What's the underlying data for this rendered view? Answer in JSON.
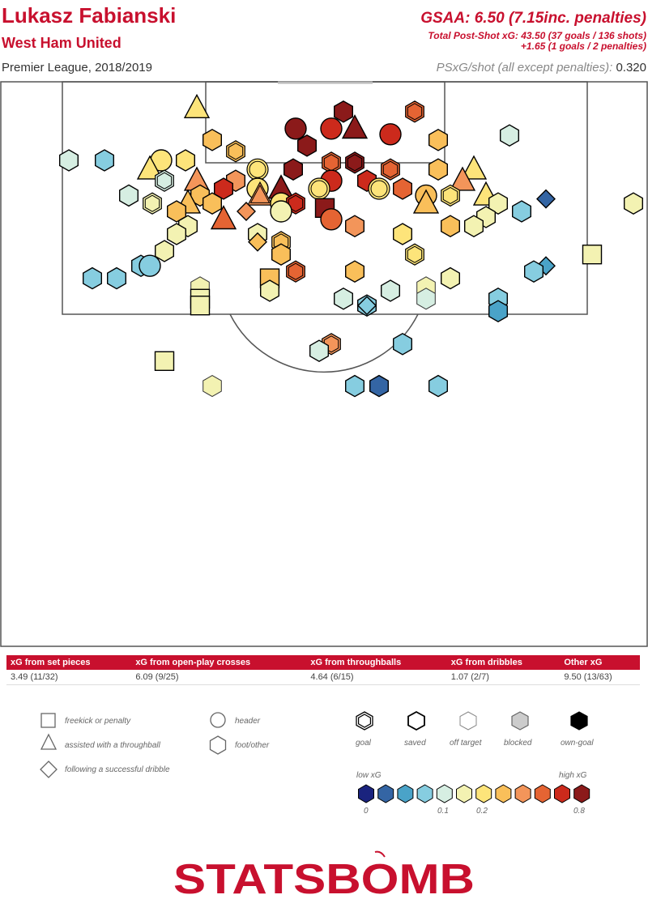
{
  "header": {
    "player": "Lukasz Fabianski",
    "team": "West Ham United",
    "league_season": "Premier League, 2018/2019",
    "gsaa": "GSAA: 6.50 (7.15inc. penalties)",
    "psxg_total": "Total Post-Shot xG: 43.50 (37 goals / 136 shots)",
    "psxg_pens": "+1.65 (1 goals / 2 penalties)",
    "psxg_shot_label": "PSxG/shot (all except penalties):",
    "psxg_shot_value": "0.320"
  },
  "table": {
    "headers": [
      "xG from set pieces",
      "xG from open-play crosses",
      "xG from throughballs",
      "xG from dribbles",
      "Other xG"
    ],
    "values": [
      "3.49 (11/32)",
      "6.09 (9/25)",
      "4.64 (6/15)",
      "1.07 (2/7)",
      "9.50 (13/63)"
    ]
  },
  "legend": {
    "shapes": [
      "freekick or penalty",
      "assisted with a throughball",
      "following a successful dribble",
      "header",
      "foot/other"
    ],
    "outcomes": [
      "goal",
      "saved",
      "off target",
      "blocked",
      "own-goal"
    ],
    "scale_low": "low xG",
    "scale_high": "high xG",
    "scale_ticks": [
      "0",
      "0.1",
      "0.2",
      "0.8"
    ],
    "scale_colors": [
      "#1a237e",
      "#3465a4",
      "#4aa3c8",
      "#86cde0",
      "#d6eee2",
      "#f3f2b2",
      "#fde47a",
      "#f9bf5a",
      "#f3955a",
      "#e56433",
      "#cc2a1c",
      "#8b1a1a"
    ]
  },
  "brand": "STATSBOMB",
  "chart_data": {
    "type": "scatter",
    "title": "Lukasz Fabianski",
    "xlabel": "",
    "ylabel": "",
    "xlim": [
      0,
      80
    ],
    "ylim": [
      70,
      120
    ],
    "color_scale": "xG",
    "points": [
      {
        "x": 24.3,
        "y": 117.6,
        "shape": "triangle",
        "color": "#fde47a",
        "outcome": "saved",
        "xg": 0.25
      },
      {
        "x": 42.4,
        "y": 117.3,
        "shape": "hexagon",
        "color": "#8b1a1a",
        "outcome": "saved",
        "xg": 0.9
      },
      {
        "x": 51.2,
        "y": 117.3,
        "shape": "hexagon",
        "color": "#e56433",
        "outcome": "goal",
        "xg": 0.55
      },
      {
        "x": 36.5,
        "y": 115.8,
        "shape": "circle",
        "color": "#8b1a1a",
        "outcome": "saved",
        "xg": 0.85
      },
      {
        "x": 40.9,
        "y": 115.8,
        "shape": "circle",
        "color": "#cc2a1c",
        "outcome": "saved",
        "xg": 0.7
      },
      {
        "x": 43.8,
        "y": 115.8,
        "shape": "triangle",
        "color": "#8b1a1a",
        "outcome": "saved",
        "xg": 0.85
      },
      {
        "x": 48.2,
        "y": 115.3,
        "shape": "circle",
        "color": "#cc2a1c",
        "outcome": "saved",
        "xg": 0.7
      },
      {
        "x": 62.9,
        "y": 115.2,
        "shape": "hexagon",
        "color": "#d6eee2",
        "outcome": "saved",
        "xg": 0.09
      },
      {
        "x": 26.2,
        "y": 114.8,
        "shape": "hexagon",
        "color": "#f9bf5a",
        "outcome": "saved",
        "xg": 0.3
      },
      {
        "x": 54.1,
        "y": 114.8,
        "shape": "hexagon",
        "color": "#f9bf5a",
        "outcome": "saved",
        "xg": 0.3
      },
      {
        "x": 37.9,
        "y": 114.3,
        "shape": "hexagon",
        "color": "#8b1a1a",
        "outcome": "saved",
        "xg": 0.85
      },
      {
        "x": 29.1,
        "y": 113.8,
        "shape": "hexagon",
        "color": "#f9bf5a",
        "outcome": "goal",
        "xg": 0.3
      },
      {
        "x": 8.5,
        "y": 113.0,
        "shape": "hexagon",
        "color": "#d6eee2",
        "outcome": "saved",
        "xg": 0.09
      },
      {
        "x": 12.9,
        "y": 113.0,
        "shape": "hexagon",
        "color": "#86cde0",
        "outcome": "saved",
        "xg": 0.06
      },
      {
        "x": 19.9,
        "y": 113.0,
        "shape": "circle",
        "color": "#fde47a",
        "outcome": "saved",
        "xg": 0.22
      },
      {
        "x": 22.9,
        "y": 113.0,
        "shape": "hexagon",
        "color": "#fde47a",
        "outcome": "saved",
        "xg": 0.22
      },
      {
        "x": 18.5,
        "y": 112.2,
        "shape": "triangle",
        "color": "#fde47a",
        "outcome": "saved",
        "xg": 0.25
      },
      {
        "x": 31.8,
        "y": 112.2,
        "shape": "circle",
        "color": "#fde47a",
        "outcome": "goal",
        "xg": 0.22
      },
      {
        "x": 36.2,
        "y": 112.2,
        "shape": "hexagon",
        "color": "#8b1a1a",
        "outcome": "saved",
        "xg": 0.85
      },
      {
        "x": 40.9,
        "y": 112.8,
        "shape": "hexagon",
        "color": "#e56433",
        "outcome": "goal",
        "xg": 0.55
      },
      {
        "x": 43.8,
        "y": 112.8,
        "shape": "hexagon",
        "color": "#8b1a1a",
        "outcome": "goal",
        "xg": 0.9
      },
      {
        "x": 48.2,
        "y": 112.2,
        "shape": "hexagon",
        "color": "#e56433",
        "outcome": "goal",
        "xg": 0.55
      },
      {
        "x": 54.1,
        "y": 112.2,
        "shape": "hexagon",
        "color": "#f9bf5a",
        "outcome": "saved",
        "xg": 0.3
      },
      {
        "x": 58.5,
        "y": 112.2,
        "shape": "triangle",
        "color": "#fde47a",
        "outcome": "saved",
        "xg": 0.25
      },
      {
        "x": 20.3,
        "y": 111.2,
        "shape": "hexagon",
        "color": "#d6eee2",
        "outcome": "goal",
        "xg": 0.09
      },
      {
        "x": 24.3,
        "y": 111.2,
        "shape": "triangle",
        "color": "#f3955a",
        "outcome": "saved",
        "xg": 0.4
      },
      {
        "x": 29.1,
        "y": 111.2,
        "shape": "hexagon",
        "color": "#f3955a",
        "outcome": "saved",
        "xg": 0.4
      },
      {
        "x": 40.9,
        "y": 111.2,
        "shape": "circle",
        "color": "#cc2a1c",
        "outcome": "saved",
        "xg": 0.7
      },
      {
        "x": 45.3,
        "y": 111.2,
        "shape": "hexagon",
        "color": "#cc2a1c",
        "outcome": "saved",
        "xg": 0.7
      },
      {
        "x": 57.1,
        "y": 111.2,
        "shape": "triangle",
        "color": "#f3955a",
        "outcome": "saved",
        "xg": 0.4
      },
      {
        "x": 27.6,
        "y": 110.5,
        "shape": "hexagon",
        "color": "#cc2a1c",
        "outcome": "saved",
        "xg": 0.7
      },
      {
        "x": 31.8,
        "y": 110.5,
        "shape": "circle",
        "color": "#fde47a",
        "outcome": "saved",
        "xg": 0.22
      },
      {
        "x": 34.7,
        "y": 110.5,
        "shape": "triangle",
        "color": "#8b1a1a",
        "outcome": "saved",
        "xg": 0.85
      },
      {
        "x": 39.4,
        "y": 110.5,
        "shape": "circle",
        "color": "#fde47a",
        "outcome": "goal",
        "xg": 0.22
      },
      {
        "x": 46.8,
        "y": 110.5,
        "shape": "circle",
        "color": "#fde47a",
        "outcome": "goal",
        "xg": 0.22
      },
      {
        "x": 49.7,
        "y": 110.5,
        "shape": "hexagon",
        "color": "#e56433",
        "outcome": "saved",
        "xg": 0.55
      },
      {
        "x": 15.9,
        "y": 109.9,
        "shape": "hexagon",
        "color": "#d6eee2",
        "outcome": "saved",
        "xg": 0.09
      },
      {
        "x": 24.7,
        "y": 109.9,
        "shape": "hexagon",
        "color": "#f9bf5a",
        "outcome": "saved",
        "xg": 0.3
      },
      {
        "x": 32.1,
        "y": 109.9,
        "shape": "triangle",
        "color": "#f3955a",
        "outcome": "goal",
        "xg": 0.4
      },
      {
        "x": 52.6,
        "y": 109.9,
        "shape": "circle",
        "color": "#f9bf5a",
        "outcome": "saved",
        "xg": 0.3
      },
      {
        "x": 55.6,
        "y": 109.9,
        "shape": "hexagon",
        "color": "#fde47a",
        "outcome": "goal",
        "xg": 0.22
      },
      {
        "x": 60.0,
        "y": 109.9,
        "shape": "triangle",
        "color": "#fde47a",
        "outcome": "saved",
        "xg": 0.25
      },
      {
        "x": 67.4,
        "y": 109.6,
        "shape": "diamond",
        "color": "#3465a4",
        "outcome": "saved",
        "xg": 0.03
      },
      {
        "x": 18.8,
        "y": 109.2,
        "shape": "hexagon",
        "color": "#f3f2b2",
        "outcome": "goal",
        "xg": 0.12
      },
      {
        "x": 23.2,
        "y": 109.2,
        "shape": "triangle",
        "color": "#f9bf5a",
        "outcome": "saved",
        "xg": 0.3
      },
      {
        "x": 26.2,
        "y": 109.2,
        "shape": "hexagon",
        "color": "#f9bf5a",
        "outcome": "saved",
        "xg": 0.3
      },
      {
        "x": 34.7,
        "y": 109.2,
        "shape": "circle",
        "color": "#fde47a",
        "outcome": "saved",
        "xg": 0.22
      },
      {
        "x": 36.5,
        "y": 109.2,
        "shape": "hexagon",
        "color": "#cc2a1c",
        "outcome": "goal",
        "xg": 0.7
      },
      {
        "x": 40.1,
        "y": 108.8,
        "shape": "square",
        "color": "#8b1a1a",
        "outcome": "saved",
        "xg": 0.77
      },
      {
        "x": 52.6,
        "y": 109.2,
        "shape": "triangle",
        "color": "#f9bf5a",
        "outcome": "saved",
        "xg": 0.3
      },
      {
        "x": 61.5,
        "y": 109.2,
        "shape": "hexagon",
        "color": "#f3f2b2",
        "outcome": "saved",
        "xg": 0.12
      },
      {
        "x": 78.2,
        "y": 109.2,
        "shape": "hexagon",
        "color": "#f3f2b2",
        "outcome": "saved",
        "xg": 0.12
      },
      {
        "x": 21.8,
        "y": 108.5,
        "shape": "hexagon",
        "color": "#f9bf5a",
        "outcome": "saved",
        "xg": 0.3
      },
      {
        "x": 30.4,
        "y": 108.5,
        "shape": "diamond",
        "color": "#f3955a",
        "outcome": "saved",
        "xg": 0.4
      },
      {
        "x": 34.7,
        "y": 108.5,
        "shape": "circle",
        "color": "#f3f2b2",
        "outcome": "saved",
        "xg": 0.12
      },
      {
        "x": 64.4,
        "y": 108.5,
        "shape": "hexagon",
        "color": "#86cde0",
        "outcome": "saved",
        "xg": 0.06
      },
      {
        "x": 27.6,
        "y": 107.8,
        "shape": "triangle",
        "color": "#e56433",
        "outcome": "saved",
        "xg": 0.55
      },
      {
        "x": 40.9,
        "y": 107.8,
        "shape": "circle",
        "color": "#e56433",
        "outcome": "saved",
        "xg": 0.55
      },
      {
        "x": 60.0,
        "y": 108.0,
        "shape": "hexagon",
        "color": "#f3f2b2",
        "outcome": "saved",
        "xg": 0.12
      },
      {
        "x": 23.2,
        "y": 107.2,
        "shape": "hexagon",
        "color": "#f3f2b2",
        "outcome": "saved",
        "xg": 0.12
      },
      {
        "x": 43.8,
        "y": 107.2,
        "shape": "hexagon",
        "color": "#f3955a",
        "outcome": "saved",
        "xg": 0.4
      },
      {
        "x": 55.6,
        "y": 107.2,
        "shape": "hexagon",
        "color": "#f9bf5a",
        "outcome": "saved",
        "xg": 0.3
      },
      {
        "x": 58.5,
        "y": 107.2,
        "shape": "hexagon",
        "color": "#f3f2b2",
        "outcome": "saved",
        "xg": 0.12
      },
      {
        "x": 21.8,
        "y": 106.5,
        "shape": "hexagon",
        "color": "#f3f2b2",
        "outcome": "saved",
        "xg": 0.12
      },
      {
        "x": 31.8,
        "y": 106.5,
        "shape": "hexagon",
        "color": "#f3f2b2",
        "outcome": "saved",
        "xg": 0.12
      },
      {
        "x": 49.7,
        "y": 106.5,
        "shape": "hexagon",
        "color": "#fde47a",
        "outcome": "saved",
        "xg": 0.22
      },
      {
        "x": 31.8,
        "y": 105.8,
        "shape": "diamond",
        "color": "#f9bf5a",
        "outcome": "saved",
        "xg": 0.3
      },
      {
        "x": 34.7,
        "y": 105.8,
        "shape": "hexagon",
        "color": "#f9bf5a",
        "outcome": "goal",
        "xg": 0.3
      },
      {
        "x": 20.3,
        "y": 105.0,
        "shape": "hexagon",
        "color": "#f3f2b2",
        "outcome": "saved",
        "xg": 0.12
      },
      {
        "x": 34.7,
        "y": 104.7,
        "shape": "hexagon",
        "color": "#f9bf5a",
        "outcome": "saved",
        "xg": 0.3
      },
      {
        "x": 51.2,
        "y": 104.7,
        "shape": "hexagon",
        "color": "#fde47a",
        "outcome": "goal",
        "xg": 0.22
      },
      {
        "x": 73.1,
        "y": 104.7,
        "shape": "square",
        "color": "#f3f2b2",
        "outcome": "saved",
        "xg": 0.12
      },
      {
        "x": 17.4,
        "y": 103.7,
        "shape": "hexagon",
        "color": "#86cde0",
        "outcome": "saved",
        "xg": 0.06
      },
      {
        "x": 18.5,
        "y": 103.7,
        "shape": "circle",
        "color": "#86cde0",
        "outcome": "saved",
        "xg": 0.06
      },
      {
        "x": 67.4,
        "y": 103.7,
        "shape": "diamond",
        "color": "#4aa3c8",
        "outcome": "saved",
        "xg": 0.05
      },
      {
        "x": 36.5,
        "y": 103.2,
        "shape": "hexagon",
        "color": "#e56433",
        "outcome": "goal",
        "xg": 0.55
      },
      {
        "x": 43.8,
        "y": 103.2,
        "shape": "hexagon",
        "color": "#f9bf5a",
        "outcome": "saved",
        "xg": 0.3
      },
      {
        "x": 65.9,
        "y": 103.2,
        "shape": "hexagon",
        "color": "#86cde0",
        "outcome": "saved",
        "xg": 0.06
      },
      {
        "x": 11.4,
        "y": 102.6,
        "shape": "hexagon",
        "color": "#86cde0",
        "outcome": "saved",
        "xg": 0.06
      },
      {
        "x": 14.4,
        "y": 102.6,
        "shape": "hexagon",
        "color": "#86cde0",
        "outcome": "saved",
        "xg": 0.06
      },
      {
        "x": 33.3,
        "y": 102.6,
        "shape": "square",
        "color": "#f9bf5a",
        "outcome": "saved",
        "xg": 0.3
      },
      {
        "x": 55.6,
        "y": 102.6,
        "shape": "hexagon",
        "color": "#f3f2b2",
        "outcome": "saved",
        "xg": 0.12
      },
      {
        "x": 24.7,
        "y": 101.8,
        "shape": "hexagon",
        "color": "#f3f2b2",
        "outcome": "off",
        "xg": 0.12
      },
      {
        "x": 52.6,
        "y": 101.8,
        "shape": "hexagon",
        "color": "#f3f2b2",
        "outcome": "off",
        "xg": 0.12
      },
      {
        "x": 33.3,
        "y": 101.5,
        "shape": "hexagon",
        "color": "#f3f2b2",
        "outcome": "saved",
        "xg": 0.12
      },
      {
        "x": 48.2,
        "y": 101.5,
        "shape": "hexagon",
        "color": "#d6eee2",
        "outcome": "saved",
        "xg": 0.09
      },
      {
        "x": 24.7,
        "y": 100.8,
        "shape": "square",
        "color": "#f3f2b2",
        "outcome": "saved",
        "xg": 0.12
      },
      {
        "x": 42.4,
        "y": 100.8,
        "shape": "hexagon",
        "color": "#d6eee2",
        "outcome": "saved",
        "xg": 0.09
      },
      {
        "x": 52.6,
        "y": 100.8,
        "shape": "hexagon",
        "color": "#d6eee2",
        "outcome": "off",
        "xg": 0.09
      },
      {
        "x": 61.5,
        "y": 100.8,
        "shape": "hexagon",
        "color": "#86cde0",
        "outcome": "saved",
        "xg": 0.06
      },
      {
        "x": 24.7,
        "y": 100.2,
        "shape": "square",
        "color": "#f3f2b2",
        "outcome": "saved",
        "xg": 0.12
      },
      {
        "x": 45.3,
        "y": 100.2,
        "shape": "hexagon",
        "color": "#86cde0",
        "outcome": "saved",
        "xg": 0.06
      },
      {
        "x": 45.3,
        "y": 100.2,
        "shape": "diamond",
        "color": "#86cde0",
        "outcome": "saved",
        "xg": 0.06
      },
      {
        "x": 61.5,
        "y": 99.7,
        "shape": "hexagon",
        "color": "#4aa3c8",
        "outcome": "saved",
        "xg": 0.05
      },
      {
        "x": 40.9,
        "y": 96.8,
        "shape": "hexagon",
        "color": "#f3955a",
        "outcome": "goal",
        "xg": 0.4
      },
      {
        "x": 49.7,
        "y": 96.8,
        "shape": "hexagon",
        "color": "#86cde0",
        "outcome": "saved",
        "xg": 0.06
      },
      {
        "x": 39.4,
        "y": 96.2,
        "shape": "hexagon",
        "color": "#d6eee2",
        "outcome": "saved",
        "xg": 0.09
      },
      {
        "x": 20.3,
        "y": 95.3,
        "shape": "square",
        "color": "#f3f2b2",
        "outcome": "saved",
        "xg": 0.12
      },
      {
        "x": 26.2,
        "y": 93.1,
        "shape": "hexagon",
        "color": "#f3f2b2",
        "outcome": "off",
        "xg": 0.12
      },
      {
        "x": 43.8,
        "y": 93.1,
        "shape": "hexagon",
        "color": "#86cde0",
        "outcome": "saved",
        "xg": 0.06
      },
      {
        "x": 46.8,
        "y": 93.1,
        "shape": "hexagon",
        "color": "#3465a4",
        "outcome": "saved",
        "xg": 0.03
      },
      {
        "x": 54.1,
        "y": 93.1,
        "shape": "hexagon",
        "color": "#86cde0",
        "outcome": "saved",
        "xg": 0.06
      }
    ]
  }
}
